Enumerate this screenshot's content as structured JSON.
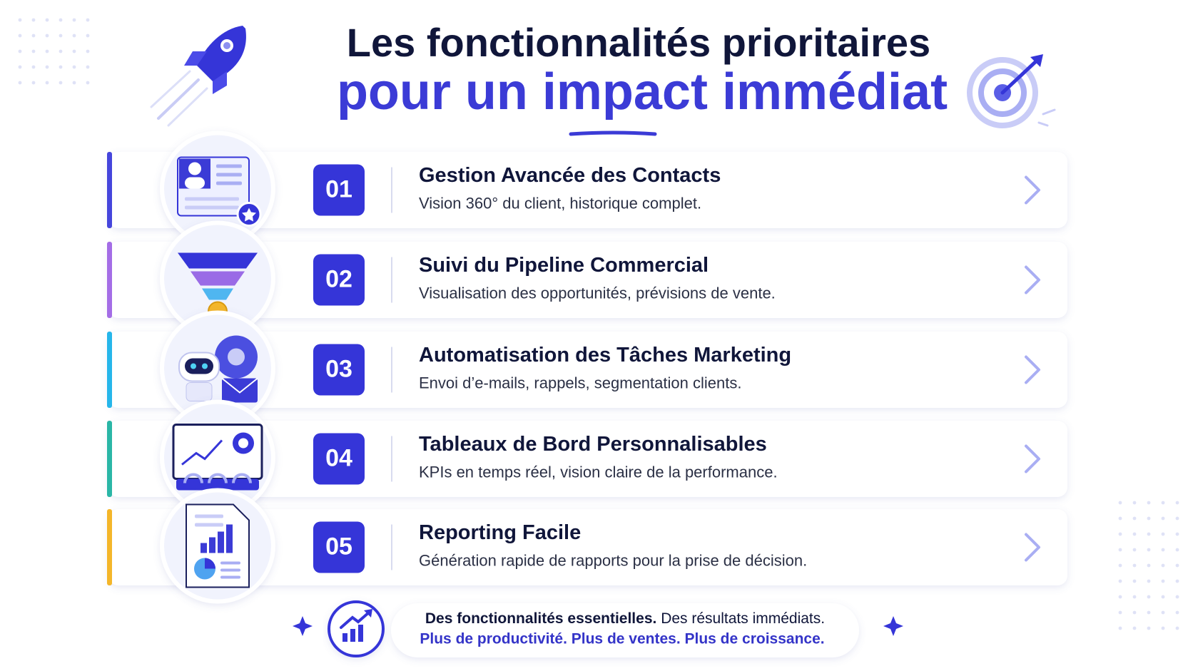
{
  "header": {
    "title_line1": "Les fonctionnalités prioritaires",
    "title_line2": "pour un impact immédiat"
  },
  "items": [
    {
      "number": "01",
      "title": "Gestion Avancée des Contacts",
      "description": "Vision 360° du client, historique complet."
    },
    {
      "number": "02",
      "title": "Suivi du Pipeline Commercial",
      "description": "Visualisation des opportunités, prévisions de vente."
    },
    {
      "number": "03",
      "title": "Automatisation des Tâches Marketing",
      "description": "Envoi d’e-mails, rappels, segmentation clients."
    },
    {
      "number": "04",
      "title": "Tableaux de Bord Personnalisables",
      "description": "KPIs en temps réel, vision claire de la performance."
    },
    {
      "number": "05",
      "title": "Reporting Facile",
      "description": "Génération rapide de rapports pour la prise de décision."
    }
  ],
  "footer": {
    "line1_bold": "Des fonctionnalités essentielles.",
    "line1_rest": "Des résultats immédiats.",
    "line2": "Plus de productivité. Plus de ventes. Plus de croissance."
  }
}
